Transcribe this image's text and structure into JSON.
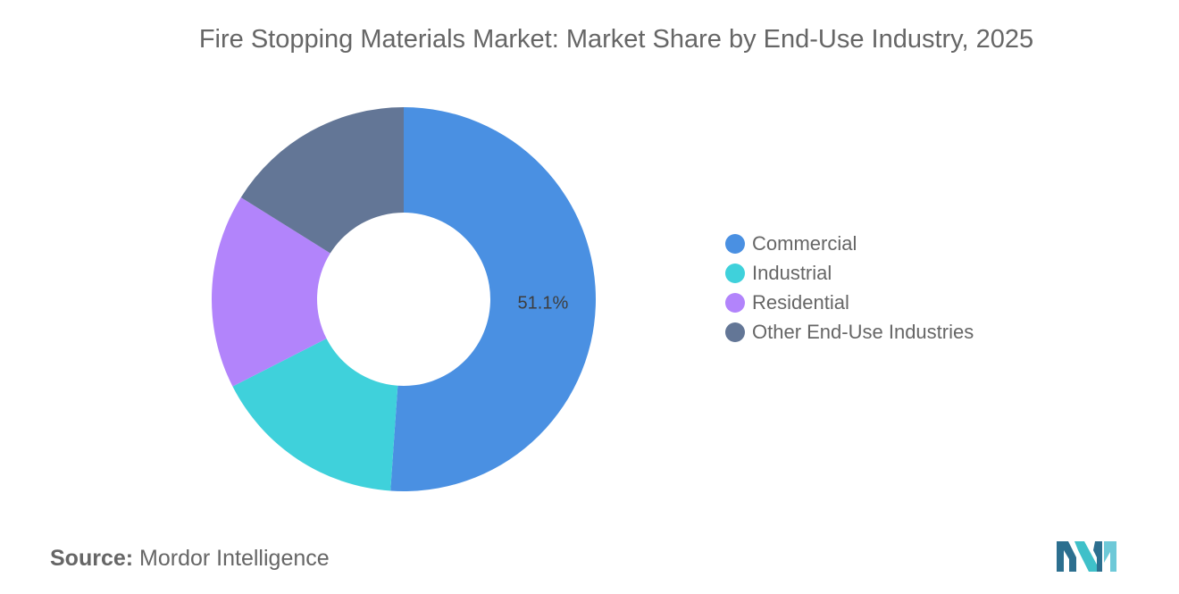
{
  "chart_data": {
    "type": "pie",
    "title": "Fire Stopping Materials Market: Market Share by End-Use Industry, 2025",
    "donut": true,
    "categories": [
      "Commercial",
      "Industrial",
      "Residential",
      "Other End-Use Industries"
    ],
    "values": [
      51.1,
      16.4,
      16.4,
      16.1
    ],
    "colors": [
      "#4a90e2",
      "#3fd1db",
      "#b284fb",
      "#637696"
    ],
    "data_labels": [
      {
        "category": "Commercial",
        "text": "51.1%"
      }
    ],
    "legend_position": "right",
    "start_angle_deg": 0,
    "direction": "clockwise"
  },
  "source": {
    "label": "Source:",
    "text": "Mordor Intelligence"
  },
  "logo": {
    "icon": "mordor-intelligence-logo",
    "colors": [
      "#2c6f8f",
      "#3fc0c9",
      "#6ec9d8"
    ]
  }
}
